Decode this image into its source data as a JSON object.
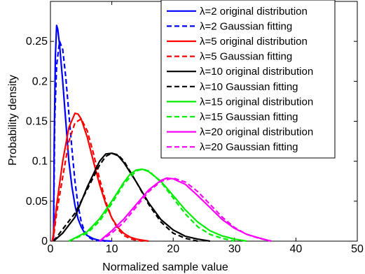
{
  "chart_data": {
    "type": "line",
    "xlabel": "Normalized sample value",
    "ylabel": "Probability density",
    "xlim": [
      0,
      50
    ],
    "ylim": [
      0,
      0.3
    ],
    "xticks": [
      0,
      10,
      20,
      30,
      40,
      50
    ],
    "yticks": [
      0,
      0.05,
      0.1,
      0.15,
      0.2,
      0.25
    ],
    "ytick_labels": [
      "0",
      "0.05",
      "0.1",
      "0.15",
      "0.2",
      "0.25"
    ],
    "grid": false,
    "legend_position": "top-right",
    "series": [
      {
        "name": "λ=2 original distribution",
        "color": "#0000ff",
        "dash": "solid",
        "x": [
          0.5,
          0.6,
          0.8,
          1,
          1.2,
          1.5,
          2,
          2.5,
          3,
          3.5,
          4,
          4.5,
          5,
          5.5,
          6,
          7,
          8,
          9,
          10
        ],
        "y": [
          0.0,
          0.12,
          0.23,
          0.27,
          0.265,
          0.245,
          0.2,
          0.15,
          0.1,
          0.068,
          0.045,
          0.028,
          0.018,
          0.011,
          0.007,
          0.003,
          0.001,
          0.0004,
          0.0
        ]
      },
      {
        "name": "λ=2 Gaussian fitting",
        "color": "#0000ff",
        "dash": "dashed",
        "x": [
          0.5,
          0.7,
          1,
          1.5,
          2,
          2.5,
          3,
          3.5,
          4,
          4.5,
          5,
          5.5,
          6,
          7,
          8,
          9
        ],
        "y": [
          0.0,
          0.15,
          0.22,
          0.25,
          0.24,
          0.205,
          0.16,
          0.115,
          0.075,
          0.045,
          0.025,
          0.013,
          0.006,
          0.0015,
          0.0003,
          0.0
        ]
      },
      {
        "name": "λ=5 original distribution",
        "color": "#ff0000",
        "dash": "solid",
        "x": [
          0.3,
          0.5,
          1,
          2,
          3,
          4,
          4.5,
          5,
          6,
          7,
          8,
          9,
          10,
          11,
          12,
          13,
          14,
          15,
          16
        ],
        "y": [
          0.0,
          0.01,
          0.045,
          0.1,
          0.142,
          0.16,
          0.159,
          0.153,
          0.13,
          0.1,
          0.071,
          0.047,
          0.029,
          0.017,
          0.0095,
          0.005,
          0.0025,
          0.0012,
          0.0
        ]
      },
      {
        "name": "λ=5 Gaussian fitting",
        "color": "#ff0000",
        "dash": "dashed",
        "x": [
          0.3,
          0.5,
          1,
          2,
          3,
          4,
          5,
          6,
          7,
          8,
          9,
          10,
          11,
          12,
          13,
          14,
          15
        ],
        "y": [
          0.0,
          0.005,
          0.035,
          0.08,
          0.125,
          0.148,
          0.153,
          0.138,
          0.11,
          0.078,
          0.05,
          0.029,
          0.015,
          0.007,
          0.003,
          0.001,
          0.0
        ]
      },
      {
        "name": "λ=10 original distribution",
        "color": "#000000",
        "dash": "solid",
        "x": [
          0.5,
          2,
          4,
          6,
          8,
          9,
          10,
          11,
          12,
          14,
          16,
          18,
          20,
          22,
          24,
          26
        ],
        "y": [
          0.0,
          0.01,
          0.03,
          0.068,
          0.1,
          0.109,
          0.11,
          0.107,
          0.098,
          0.074,
          0.048,
          0.027,
          0.014,
          0.006,
          0.0025,
          0.0
        ]
      },
      {
        "name": "λ=10 Gaussian fitting",
        "color": "#000000",
        "dash": "dashed",
        "x": [
          0.5,
          2,
          4,
          6,
          8,
          9,
          10,
          11,
          12,
          14,
          16,
          18,
          20,
          22,
          24
        ],
        "y": [
          0.0,
          0.015,
          0.035,
          0.065,
          0.095,
          0.106,
          0.11,
          0.108,
          0.1,
          0.074,
          0.046,
          0.024,
          0.01,
          0.0035,
          0.0
        ]
      },
      {
        "name": "λ=15 original distribution",
        "color": "#00ee00",
        "dash": "solid",
        "x": [
          3,
          6,
          8,
          10,
          12,
          13,
          14,
          15,
          16,
          18,
          20,
          22,
          24,
          26,
          28,
          30,
          32
        ],
        "y": [
          0.0,
          0.012,
          0.028,
          0.05,
          0.074,
          0.084,
          0.089,
          0.09,
          0.087,
          0.075,
          0.057,
          0.039,
          0.024,
          0.013,
          0.0065,
          0.0025,
          0.0
        ]
      },
      {
        "name": "λ=15 Gaussian fitting",
        "color": "#00ee00",
        "dash": "dashed",
        "x": [
          3,
          6,
          8,
          10,
          12,
          14,
          15,
          16,
          18,
          20,
          22,
          24,
          26,
          28,
          30
        ],
        "y": [
          0.0,
          0.01,
          0.025,
          0.047,
          0.072,
          0.088,
          0.09,
          0.088,
          0.074,
          0.054,
          0.034,
          0.018,
          0.0085,
          0.0035,
          0.0
        ]
      },
      {
        "name": "λ=20 original distribution",
        "color": "#ff00ff",
        "dash": "solid",
        "x": [
          8,
          10,
          12,
          14,
          16,
          18,
          19,
          20,
          22,
          24,
          26,
          28,
          30,
          32,
          34,
          36
        ],
        "y": [
          0.0,
          0.013,
          0.028,
          0.046,
          0.064,
          0.076,
          0.079,
          0.078,
          0.071,
          0.057,
          0.042,
          0.027,
          0.016,
          0.0085,
          0.004,
          0.0
        ]
      },
      {
        "name": "λ=20 Gaussian fitting",
        "color": "#ff00ff",
        "dash": "dashed",
        "x": [
          8,
          10,
          12,
          14,
          16,
          18,
          20,
          22,
          24,
          26,
          28,
          30,
          32,
          34,
          36
        ],
        "y": [
          0.0,
          0.01,
          0.024,
          0.043,
          0.062,
          0.075,
          0.079,
          0.074,
          0.062,
          0.046,
          0.03,
          0.017,
          0.0085,
          0.0035,
          0.0
        ]
      }
    ]
  }
}
